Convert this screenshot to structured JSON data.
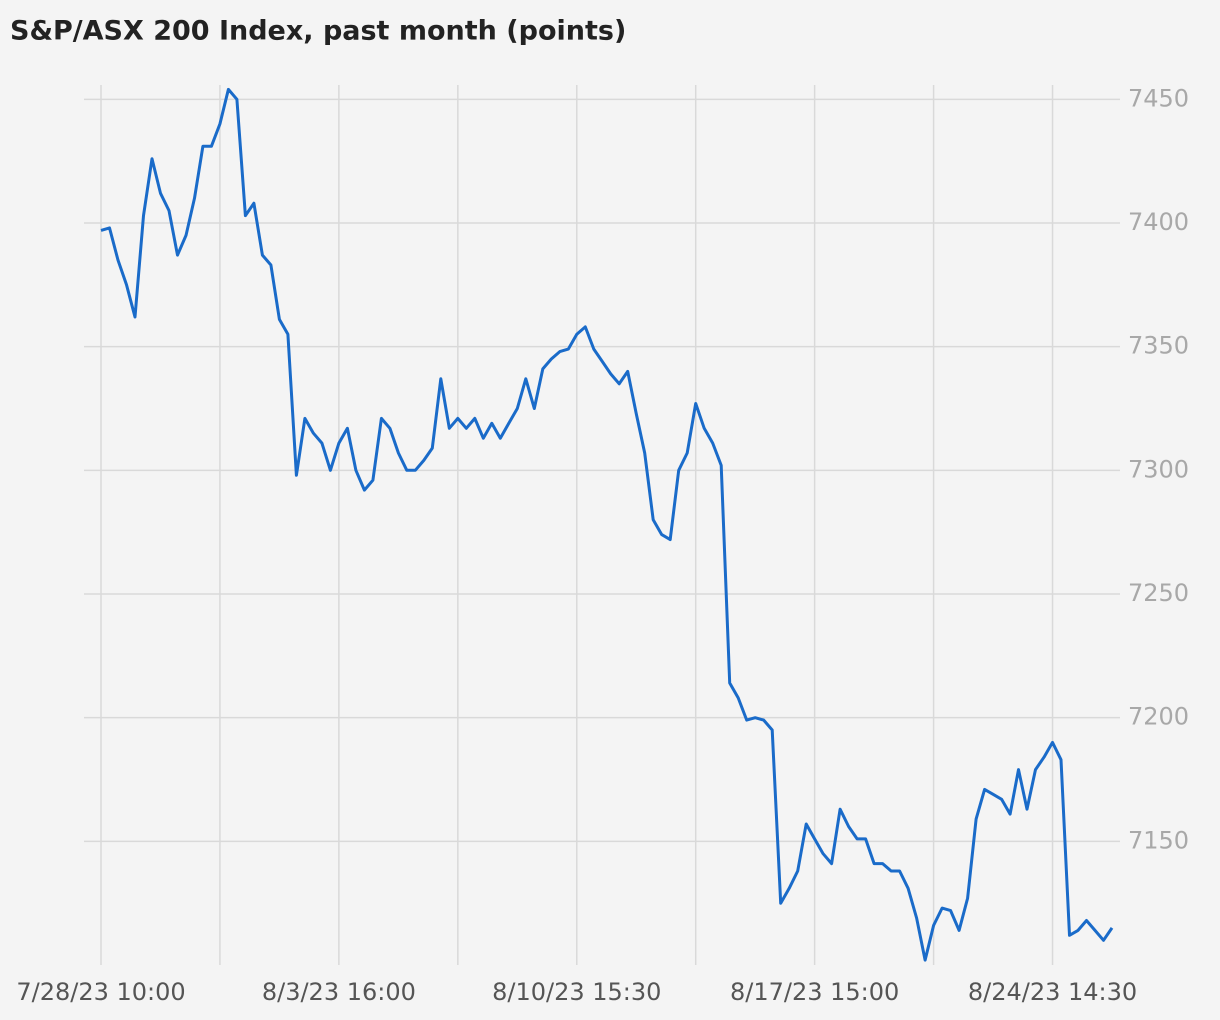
{
  "chart_data": {
    "type": "line",
    "title": "S&P/ASX 200 Index, past month (points)",
    "categories": [
      "7/28/23 10:00",
      null,
      null,
      null,
      null,
      null,
      null,
      null,
      null,
      null,
      null,
      null,
      null,
      null,
      null,
      null,
      null,
      null,
      null,
      null,
      null,
      null,
      null,
      null,
      null,
      null,
      null,
      null,
      "8/3/23 16:00",
      null,
      null,
      null,
      null,
      null,
      null,
      null,
      null,
      null,
      null,
      null,
      null,
      null,
      null,
      null,
      null,
      null,
      null,
      null,
      null,
      null,
      null,
      null,
      null,
      null,
      null,
      null,
      "8/10/23 15:30",
      null,
      null,
      null,
      null,
      null,
      null,
      null,
      null,
      null,
      null,
      null,
      null,
      null,
      null,
      null,
      null,
      null,
      null,
      null,
      null,
      null,
      null,
      null,
      null,
      null,
      null,
      null,
      "8/17/23 15:00",
      null,
      null,
      null,
      null,
      null,
      null,
      null,
      null,
      null,
      null,
      null,
      null,
      null,
      null,
      null,
      null,
      null,
      null,
      null,
      null,
      null,
      null,
      null,
      null,
      null,
      null,
      null,
      "8/24/23 14:30",
      null,
      null,
      null,
      null,
      null,
      null,
      null
    ],
    "values": [
      7397,
      7398,
      7385,
      7375,
      7362,
      7403,
      7426,
      7412,
      7405,
      7387,
      7395,
      7410,
      7431,
      7431,
      7440,
      7454,
      7450,
      7403,
      7408,
      7387,
      7383,
      7361,
      7355,
      7298,
      7321,
      7315,
      7311,
      7300,
      7311,
      7317,
      7300,
      7292,
      7296,
      7321,
      7317,
      7307,
      7300,
      7300,
      7304,
      7309,
      7337,
      7317,
      7321,
      7317,
      7321,
      7313,
      7319,
      7313,
      7319,
      7325,
      7337,
      7325,
      7341,
      7345,
      7348,
      7349,
      7355,
      7358,
      7349,
      7344,
      7339,
      7335,
      7340,
      7323,
      7307,
      7280,
      7274,
      7272,
      7300,
      7307,
      7327,
      7317,
      7311,
      7302,
      7214,
      7208,
      7199,
      7200,
      7199,
      7195,
      7125,
      7131,
      7138,
      7157,
      7151,
      7145,
      7141,
      7163,
      7156,
      7151,
      7151,
      7141,
      7141,
      7138,
      7138,
      7131,
      7119,
      7102,
      7116,
      7123,
      7122,
      7114,
      7127,
      7159,
      7171,
      7169,
      7167,
      7161,
      7179,
      7163,
      7179,
      7184,
      7190,
      7183,
      7112,
      7114,
      7118,
      7114,
      7110,
      7115
    ],
    "color": "#1a6bc9",
    "ylim": [
      7100,
      7457
    ],
    "yticks": [
      7150,
      7200,
      7250,
      7300,
      7350,
      7400,
      7450
    ],
    "grid": true
  }
}
